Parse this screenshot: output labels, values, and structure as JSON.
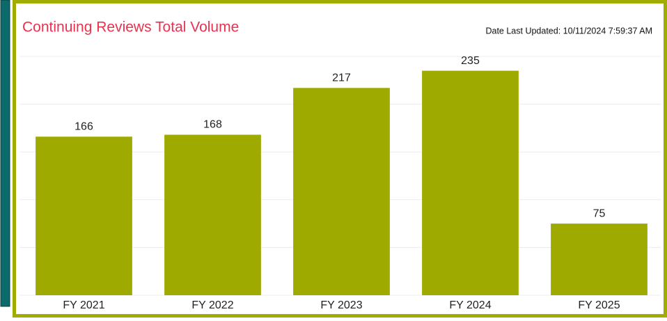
{
  "chart_data": {
    "type": "bar",
    "title": "Continuing Reviews Total Volume",
    "subtitle": "Date Last Updated: 10/11/2024 7:59:37 AM",
    "categories": [
      "FY 2021",
      "FY 2022",
      "FY 2023",
      "FY 2024",
      "FY 2025"
    ],
    "values": [
      166,
      168,
      217,
      235,
      75
    ],
    "color": "#9eaa00",
    "ylim": [
      0,
      250
    ],
    "yticks": [
      0,
      50,
      100,
      150,
      200,
      250
    ],
    "grid": true
  }
}
